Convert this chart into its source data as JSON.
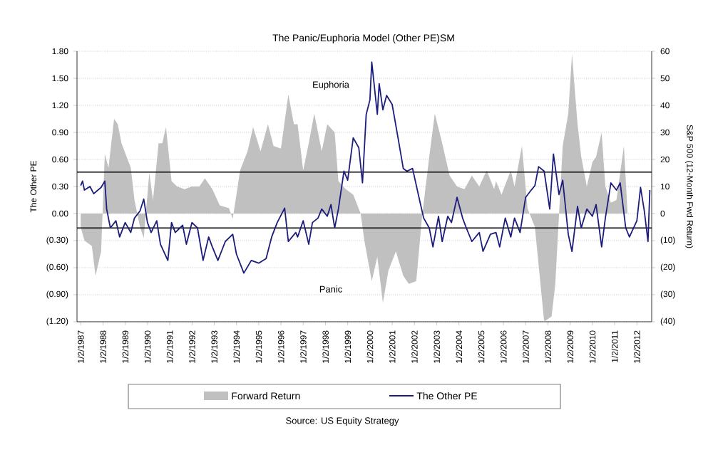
{
  "chart_data": {
    "type": "line",
    "title": "The Panic/Euphoria Model (Other PE)SM",
    "ylabel": "The Other PE",
    "y2label": "S&P 500 (12-Month Fwd Return)",
    "xlim": [
      "1986-11",
      "2012-09"
    ],
    "xticks": [
      {
        "value": "1987-01-02",
        "label": "1/2/1987"
      },
      {
        "value": "1988-01-02",
        "label": "1/2/1988"
      },
      {
        "value": "1989-01-02",
        "label": "1/2/1989"
      },
      {
        "value": "1990-01-02",
        "label": "1/2/1990"
      },
      {
        "value": "1991-01-02",
        "label": "1/2/1991"
      },
      {
        "value": "1992-01-02",
        "label": "1/2/1992"
      },
      {
        "value": "1993-01-02",
        "label": "1/2/1993"
      },
      {
        "value": "1994-01-02",
        "label": "1/2/1994"
      },
      {
        "value": "1995-01-02",
        "label": "1/2/1995"
      },
      {
        "value": "1996-01-02",
        "label": "1/2/1996"
      },
      {
        "value": "1997-01-02",
        "label": "1/2/1997"
      },
      {
        "value": "1998-01-02",
        "label": "1/2/1998"
      },
      {
        "value": "1999-01-02",
        "label": "1/2/1999"
      },
      {
        "value": "2000-01-02",
        "label": "1/2/2000"
      },
      {
        "value": "2001-01-02",
        "label": "1/2/2001"
      },
      {
        "value": "2002-01-02",
        "label": "1/2/2002"
      },
      {
        "value": "2003-01-02",
        "label": "1/2/2003"
      },
      {
        "value": "2004-01-02",
        "label": "1/2/2004"
      },
      {
        "value": "2005-01-02",
        "label": "1/2/2005"
      },
      {
        "value": "2006-01-02",
        "label": "1/2/2006"
      },
      {
        "value": "2007-01-02",
        "label": "1/2/2007"
      },
      {
        "value": "2008-01-02",
        "label": "1/2/2008"
      },
      {
        "value": "2009-01-02",
        "label": "1/2/2009"
      },
      {
        "value": "2010-01-02",
        "label": "1/2/2010"
      },
      {
        "value": "2011-01-02",
        "label": "1/2/2011"
      },
      {
        "value": "2012-01-02",
        "label": "1/2/2012"
      }
    ],
    "ylim": [
      -1.2,
      1.8
    ],
    "yticks": [
      {
        "value": -1.2,
        "label": "(1.20)"
      },
      {
        "value": -0.9,
        "label": "(0.90)"
      },
      {
        "value": -0.6,
        "label": "(0.60)"
      },
      {
        "value": -0.3,
        "label": "(0.30)"
      },
      {
        "value": 0,
        "label": "0.00"
      },
      {
        "value": 0.3,
        "label": "0.30"
      },
      {
        "value": 0.6,
        "label": "0.60"
      },
      {
        "value": 0.9,
        "label": "0.90"
      },
      {
        "value": 1.2,
        "label": "1.20"
      },
      {
        "value": 1.5,
        "label": "1.50"
      },
      {
        "value": 1.8,
        "label": "1.80"
      }
    ],
    "y2lim": [
      -40,
      60
    ],
    "y2ticks": [
      {
        "value": -40,
        "label": "(40)"
      },
      {
        "value": -30,
        "label": "(30)"
      },
      {
        "value": -20,
        "label": "(20)"
      },
      {
        "value": -10,
        "label": "(10)"
      },
      0,
      10,
      20,
      30,
      40,
      50,
      60
    ],
    "grid": "y",
    "legend": "bottom",
    "marker": "none",
    "ref_lines": [
      {
        "axis": "y",
        "value": 0.46,
        "color": "#000000"
      },
      {
        "axis": "y",
        "value": -0.16,
        "color": "#000000"
      }
    ],
    "annotations": [
      "Euphoria",
      "Panic",
      "Source: US Equity Strategy"
    ],
    "series": [
      {
        "name": "Forward Return",
        "type": "area",
        "axis": "y2",
        "color": "#c0c0c0",
        "x": [
          "1987-01",
          "1987-03",
          "1987-07",
          "1987-09",
          "1987-12",
          "1988-02",
          "1988-04",
          "1988-07",
          "1988-09",
          "1988-11",
          "1989-04",
          "1989-06",
          "1989-09",
          "1989-11",
          "1990-02",
          "1990-04",
          "1990-07",
          "1990-09",
          "1990-11",
          "1991-02",
          "1991-05",
          "1991-09",
          "1992-01",
          "1992-05",
          "1992-08",
          "1992-12",
          "1993-04",
          "1993-09",
          "1993-11",
          "1994-03",
          "1994-07",
          "1994-10",
          "1995-02",
          "1995-06",
          "1995-09",
          "1996-01",
          "1996-05",
          "1996-08",
          "1996-10",
          "1997-01",
          "1997-04",
          "1997-07",
          "1997-11",
          "1998-02",
          "1998-06",
          "1998-08",
          "1998-12",
          "1999-04",
          "1999-08",
          "1999-10",
          "2000-02",
          "2000-05",
          "2000-08",
          "2000-11",
          "2001-03",
          "2001-07",
          "2001-10",
          "2002-02",
          "2002-05",
          "2002-09",
          "2002-12",
          "2003-04",
          "2003-08",
          "2003-12",
          "2004-04",
          "2004-08",
          "2004-12",
          "2005-04",
          "2005-08",
          "2005-09",
          "2005-12",
          "2006-05",
          "2006-07",
          "2006-11",
          "2007-02",
          "2007-06",
          "2007-08",
          "2007-11",
          "2008-03",
          "2008-05",
          "2008-09",
          "2008-12",
          "2009-02",
          "2009-05",
          "2009-07",
          "2009-10",
          "2010-01",
          "2010-03",
          "2010-06",
          "2010-08",
          "2010-11",
          "2011-02",
          "2011-06",
          "2011-08"
        ],
        "values": [
          -5,
          -10,
          -12,
          -23,
          -14,
          22,
          17,
          35,
          33,
          26,
          17,
          5,
          -5,
          -9,
          15,
          5,
          26,
          26,
          32,
          12,
          10,
          9,
          10,
          10,
          13,
          9,
          3,
          2,
          -2,
          16,
          23,
          32,
          23,
          33,
          25,
          24,
          44,
          33,
          33,
          16,
          26,
          37,
          23,
          33,
          30,
          12,
          9,
          7,
          0,
          -10,
          -25,
          -16,
          -33,
          -21,
          -14,
          -23,
          -26,
          -25,
          -2,
          21,
          37,
          26,
          14,
          10,
          9,
          14,
          10,
          16,
          9,
          12,
          7,
          16,
          10,
          25,
          2,
          -5,
          -19,
          -40,
          -38,
          -26,
          25,
          37,
          59,
          33,
          21,
          10,
          19,
          21,
          30,
          10,
          4,
          5,
          25,
          0
        ]
      },
      {
        "name": "The Other PE",
        "color": "#1c1c7c",
        "x": [
          "1987-01",
          "1987-02",
          "1987-03",
          "1987-06",
          "1987-08",
          "1987-12",
          "1988-02",
          "1988-03",
          "1988-05",
          "1988-08",
          "1988-10",
          "1989-01",
          "1989-04",
          "1989-06",
          "1989-09",
          "1989-11",
          "1990-01",
          "1990-03",
          "1990-06",
          "1990-08",
          "1990-12",
          "1991-02",
          "1991-04",
          "1991-08",
          "1991-10",
          "1992-01",
          "1992-04",
          "1992-07",
          "1992-10",
          "1992-12",
          "1993-03",
          "1993-07",
          "1993-11",
          "1994-01",
          "1994-05",
          "1994-09",
          "1995-01",
          "1995-05",
          "1995-08",
          "1995-11",
          "1996-03",
          "1996-05",
          "1996-09",
          "1996-10",
          "1997-01",
          "1997-04",
          "1997-06",
          "1997-09",
          "1997-11",
          "1998-02",
          "1998-04",
          "1998-06",
          "1998-08",
          "1998-11",
          "1999-01",
          "1999-04",
          "1999-07",
          "1999-09",
          "1999-11",
          "2000-01",
          "2000-02",
          "2000-05",
          "2000-06",
          "2000-08",
          "2000-10",
          "2001-01",
          "2001-04",
          "2001-07",
          "2001-09",
          "2001-12",
          "2002-04",
          "2002-06",
          "2002-09",
          "2002-11",
          "2003-02",
          "2003-04",
          "2003-07",
          "2003-09",
          "2003-12",
          "2004-03",
          "2004-05",
          "2004-08",
          "2004-12",
          "2005-02",
          "2005-06",
          "2005-09",
          "2005-11",
          "2006-02",
          "2006-05",
          "2006-07",
          "2006-10",
          "2007-01",
          "2007-04",
          "2007-06",
          "2007-08",
          "2007-11",
          "2008-02",
          "2008-04",
          "2008-07",
          "2008-09",
          "2008-12",
          "2009-02",
          "2009-05",
          "2009-07",
          "2009-10",
          "2010-01",
          "2010-03",
          "2010-06",
          "2010-08",
          "2010-11",
          "2011-02",
          "2011-04",
          "2011-07",
          "2011-09",
          "2012-01",
          "2012-03",
          "2012-05",
          "2012-07",
          "2012-08"
        ],
        "values": [
          0.31,
          0.36,
          0.26,
          0.3,
          0.22,
          0.29,
          0.36,
          0.05,
          -0.16,
          -0.08,
          -0.26,
          -0.1,
          -0.21,
          -0.05,
          0.03,
          0.16,
          -0.1,
          -0.21,
          -0.08,
          -0.34,
          -0.52,
          -0.1,
          -0.21,
          -0.13,
          -0.34,
          -0.1,
          -0.16,
          -0.52,
          -0.26,
          -0.37,
          -0.52,
          -0.31,
          -0.23,
          -0.45,
          -0.66,
          -0.52,
          -0.55,
          -0.5,
          -0.26,
          -0.1,
          0.06,
          -0.31,
          -0.21,
          -0.26,
          -0.08,
          -0.34,
          -0.1,
          -0.05,
          0.05,
          -0.03,
          0.1,
          -0.16,
          0.05,
          0.47,
          0.37,
          0.84,
          0.73,
          0.34,
          1.1,
          1.26,
          1.68,
          1.1,
          1.44,
          1.15,
          1.31,
          1.21,
          0.86,
          0.5,
          0.47,
          0.5,
          0.13,
          -0.05,
          -0.16,
          -0.37,
          -0.03,
          -0.31,
          -0.03,
          -0.1,
          0.18,
          -0.05,
          -0.16,
          -0.31,
          -0.21,
          -0.42,
          -0.23,
          -0.21,
          -0.37,
          -0.05,
          -0.26,
          -0.05,
          -0.21,
          0.18,
          0.26,
          0.31,
          0.52,
          0.47,
          0.05,
          0.66,
          0.21,
          0.37,
          -0.23,
          -0.42,
          0.08,
          -0.16,
          0.05,
          -0.03,
          0.1,
          -0.37,
          -0.05,
          0.34,
          0.26,
          0.34,
          -0.16,
          -0.26,
          -0.08,
          0.29,
          0.03,
          -0.31,
          0.26
        ]
      }
    ]
  }
}
